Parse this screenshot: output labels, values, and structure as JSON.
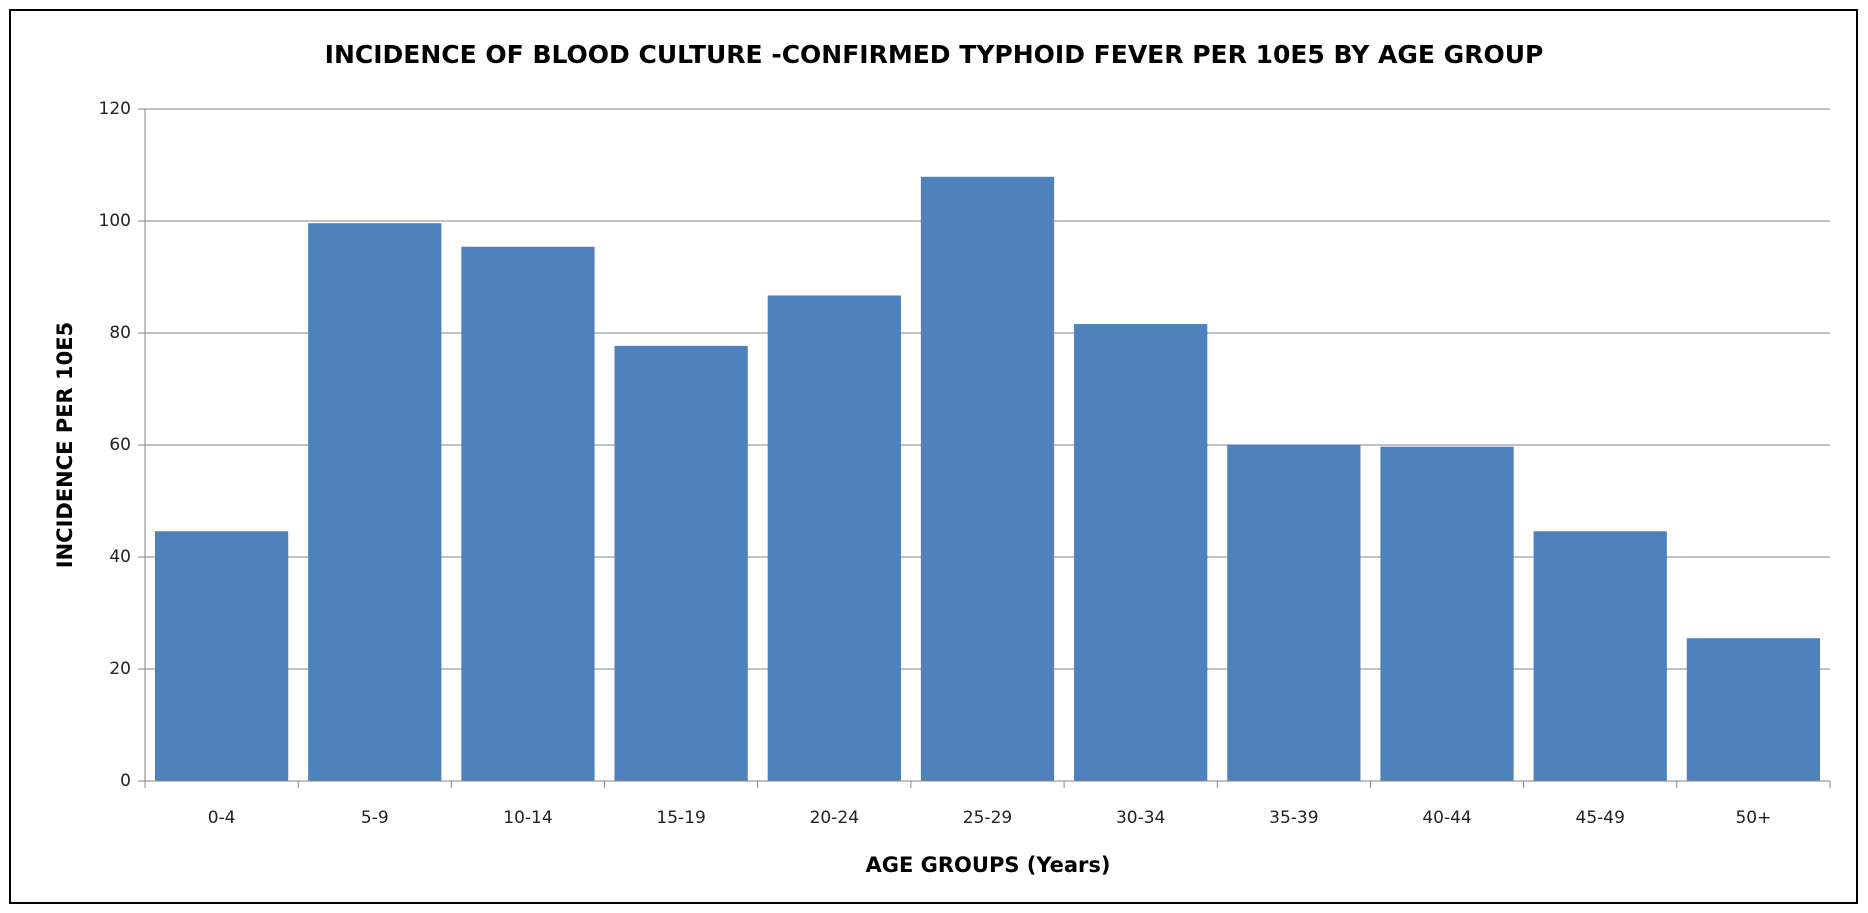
{
  "chart_data": {
    "type": "bar",
    "title": "INCIDENCE OF BLOOD CULTURE -CONFIRMED TYPHOID FEVER PER 10E5 BY AGE GROUP",
    "x_label": "AGE GROUPS (Years)",
    "y_label": "INCIDENCE PER 10E5",
    "categories": [
      "0-4",
      "5-9",
      "10-14",
      "15-19",
      "20-24",
      "25-29",
      "30-34",
      "35-39",
      "40-44",
      "45-49",
      "50+"
    ],
    "values": [
      44.6,
      99.6,
      95.4,
      77.7,
      86.7,
      107.9,
      81.6,
      60.1,
      59.7,
      44.6,
      25.5
    ],
    "color": "#4f81bd",
    "ylim": [
      0,
      120
    ],
    "yticks": [
      0,
      20,
      40,
      60,
      80,
      100,
      120
    ],
    "grid": true
  }
}
